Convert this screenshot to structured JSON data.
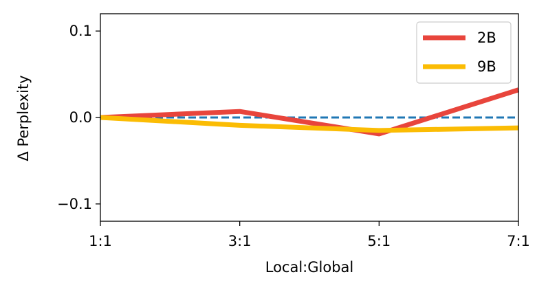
{
  "chart_data": {
    "type": "line",
    "title": "",
    "xlabel": "Local:Global",
    "ylabel": "Δ Perplexity",
    "categories": [
      "1:1",
      "3:1",
      "5:1",
      "7:1"
    ],
    "x": [
      1,
      3,
      5,
      7
    ],
    "xlim": [
      1,
      7
    ],
    "ylim": [
      -0.12,
      0.12
    ],
    "yticks": [
      {
        "value": -0.1,
        "label": "−0.1"
      },
      {
        "value": 0.0,
        "label": "0.0"
      },
      {
        "value": 0.1,
        "label": "0.1"
      }
    ],
    "grid": false,
    "legend_position": "top-right",
    "baseline": {
      "value": 0.0,
      "style": "dashed",
      "color": "#1f77b4"
    },
    "series": [
      {
        "name": "2B",
        "color": "#e8453c",
        "values": [
          0.0,
          0.007,
          -0.019,
          0.032
        ]
      },
      {
        "name": "9B",
        "color": "#fbbc04",
        "values": [
          0.0,
          -0.009,
          -0.015,
          -0.012
        ]
      }
    ]
  }
}
